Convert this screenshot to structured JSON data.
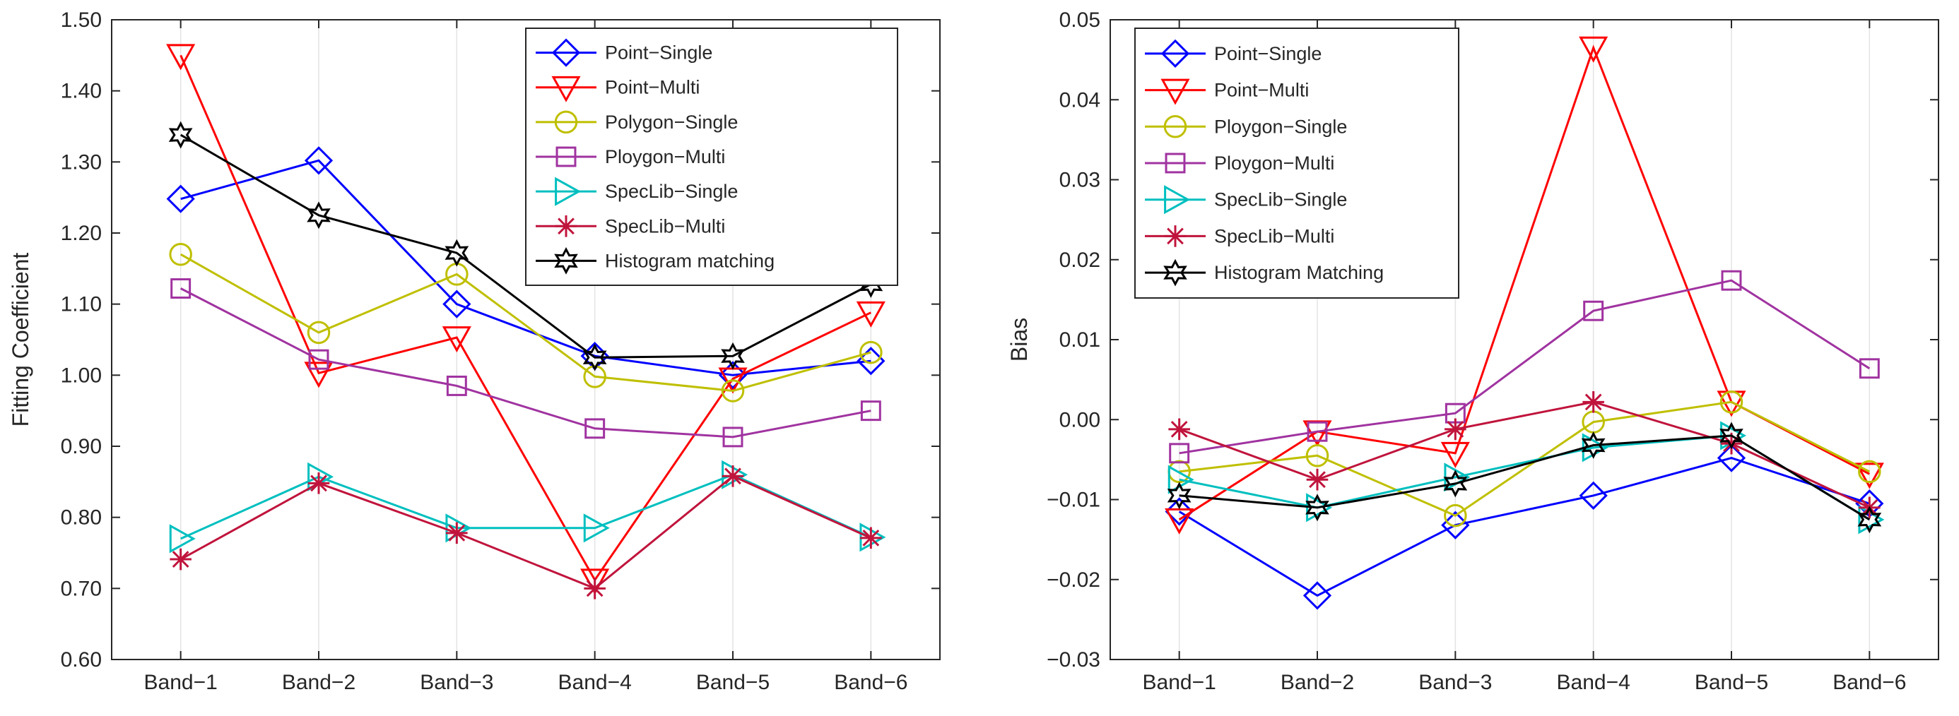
{
  "chart_data": [
    {
      "type": "line",
      "title": "",
      "xlabel": "",
      "ylabel": "Fitting Coefficient",
      "categories": [
        "Band−1",
        "Band−2",
        "Band−3",
        "Band−4",
        "Band−5",
        "Band−6"
      ],
      "ylim": [
        0.6,
        1.5
      ],
      "yticks": [
        "0.60",
        "0.70",
        "0.80",
        "0.90",
        "1.00",
        "1.10",
        "1.20",
        "1.30",
        "1.40",
        "1.50"
      ],
      "grid": "vertical",
      "legend_position": "top-right",
      "series": [
        {
          "name": "Point−Single",
          "color": "#0000ff",
          "marker": "diamond",
          "values": [
            1.248,
            1.302,
            1.1,
            1.027,
            1.0,
            1.02
          ]
        },
        {
          "name": "Point−Multi",
          "color": "#ff0000",
          "marker": "triangle-down",
          "values": [
            1.45,
            1.003,
            1.053,
            0.712,
            0.995,
            1.088
          ]
        },
        {
          "name": "Polygon−Single",
          "color": "#bfbf00",
          "marker": "circle",
          "values": [
            1.17,
            1.06,
            1.142,
            0.998,
            0.978,
            1.032
          ]
        },
        {
          "name": "Ploygon−Multi",
          "color": "#a033a0",
          "marker": "square",
          "values": [
            1.122,
            1.022,
            0.985,
            0.925,
            0.913,
            0.95
          ]
        },
        {
          "name": "SpecLib−Single",
          "color": "#00bfbf",
          "marker": "triangle-right",
          "values": [
            0.77,
            0.857,
            0.785,
            0.785,
            0.86,
            0.772
          ]
        },
        {
          "name": "SpecLib−Multi",
          "color": "#c0143c",
          "marker": "asterisk",
          "values": [
            0.741,
            0.848,
            0.778,
            0.7,
            0.858,
            0.771
          ]
        },
        {
          "name": "Histogram matching",
          "color": "#000000",
          "marker": "hexagram",
          "values": [
            1.338,
            1.225,
            1.172,
            1.025,
            1.027,
            1.128
          ]
        }
      ]
    },
    {
      "type": "line",
      "title": "",
      "xlabel": "",
      "ylabel": "Bias",
      "categories": [
        "Band−1",
        "Band−2",
        "Band−3",
        "Band−4",
        "Band−5",
        "Band−6"
      ],
      "ylim": [
        -0.03,
        0.05
      ],
      "yticks": [
        "−0.03",
        "−0.02",
        "−0.01",
        "0.00",
        "0.01",
        "0.02",
        "0.03",
        "0.04",
        "0.05"
      ],
      "grid": "vertical",
      "legend_position": "top-left",
      "series": [
        {
          "name": "Point−Single",
          "color": "#0000ff",
          "marker": "diamond",
          "values": [
            -0.0115,
            -0.022,
            -0.0132,
            -0.0095,
            -0.0048,
            -0.0105
          ]
        },
        {
          "name": "Point−Multi",
          "color": "#ff0000",
          "marker": "triangle-down",
          "values": [
            -0.0125,
            -0.0015,
            -0.0042,
            0.0465,
            0.0022,
            -0.0068
          ]
        },
        {
          "name": "Ploygon−Single",
          "color": "#bfbf00",
          "marker": "circle",
          "values": [
            -0.0065,
            -0.0045,
            -0.012,
            -0.0003,
            0.0022,
            -0.0065
          ]
        },
        {
          "name": "Ploygon−Multi",
          "color": "#a033a0",
          "marker": "square",
          "values": [
            -0.0042,
            -0.0015,
            0.0008,
            0.0136,
            0.0174,
            0.0064
          ]
        },
        {
          "name": "SpecLib−Single",
          "color": "#00bfbf",
          "marker": "triangle-right",
          "values": [
            -0.0075,
            -0.011,
            -0.0072,
            -0.0035,
            -0.002,
            -0.0125
          ]
        },
        {
          "name": "SpecLib−Multi",
          "color": "#c0143c",
          "marker": "asterisk",
          "values": [
            -0.0012,
            -0.0075,
            -0.0012,
            0.0022,
            -0.003,
            -0.011
          ]
        },
        {
          "name": "Histogram Matching",
          "color": "#000000",
          "marker": "hexagram",
          "values": [
            -0.0095,
            -0.011,
            -0.008,
            -0.0032,
            -0.002,
            -0.0125
          ]
        }
      ]
    }
  ]
}
